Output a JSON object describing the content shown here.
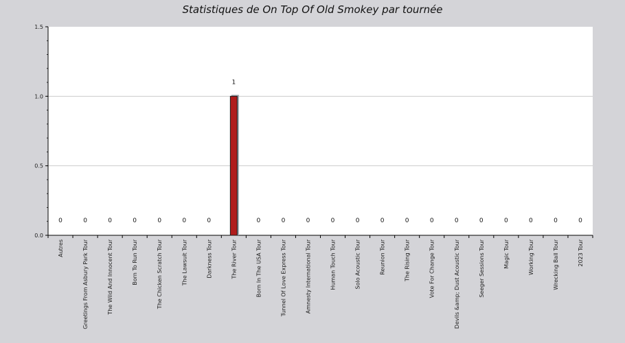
{
  "chart_data": {
    "type": "bar",
    "title": "Statistiques de On Top Of Old Smokey par tournée",
    "xlabel": "",
    "ylabel": "",
    "ylim": [
      0,
      1.5
    ],
    "yticks": [
      "0.0",
      "0.5",
      "1.0",
      "1.5"
    ],
    "grid": true,
    "categories": [
      "Autres",
      "Greetings From Asbury Park Tour",
      "The Wild And Innocent Tour",
      "Born To Run Tour",
      "The Chicken Scratch Tour",
      "The Lawsuit Tour",
      "Darkness Tour",
      "The River Tour",
      "Born In The USA Tour",
      "Tunnel Of Love Express Tour",
      "Amnesty International Tour",
      "Human Touch Tour",
      "Solo Acoustic Tour",
      "Reunion Tour",
      "The Rising Tour",
      "Vote For Change Tour",
      "Devils &amp; Dust Acoustic Tour",
      "Seeger Sessions Tour",
      "Magic Tour",
      "Working Tour",
      "Wrecking Ball Tour",
      "2023 Tour"
    ],
    "values": [
      0,
      0,
      0,
      0,
      0,
      0,
      0,
      1,
      0,
      0,
      0,
      0,
      0,
      0,
      0,
      0,
      0,
      0,
      0,
      0,
      0,
      0
    ],
    "data_labels": [
      "0",
      "0",
      "0",
      "0",
      "0",
      "0",
      "0",
      "1",
      "0",
      "0",
      "0",
      "0",
      "0",
      "0",
      "0",
      "0",
      "0",
      "0",
      "0",
      "0",
      "0",
      "0"
    ],
    "colors": {
      "bar": "#b01c1c",
      "bar_shadow": "#9aa0a8",
      "plot_bg": "#ffffff",
      "page_bg": "#d4d4d8",
      "grid": "#cccccc"
    }
  }
}
